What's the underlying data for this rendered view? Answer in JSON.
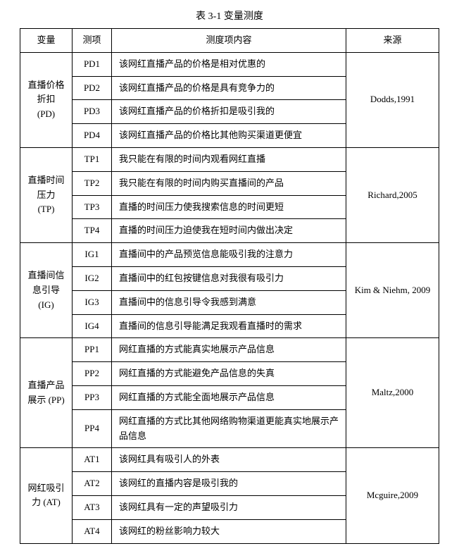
{
  "caption": "表 3-1  变量测度",
  "headers": {
    "variable": "变量",
    "item": "测项",
    "content": "测度项内容",
    "source": "来源"
  },
  "groups": [
    {
      "variable": "直播价格折扣 (PD)",
      "source": "Dodds,1991",
      "rows": [
        {
          "item": "PD1",
          "content": "该网红直播产品的价格是相对优惠的"
        },
        {
          "item": "PD2",
          "content": "该网红直播产品的价格是具有竞争力的"
        },
        {
          "item": "PD3",
          "content": "该网红直播产品的价格折扣是吸引我的"
        },
        {
          "item": "PD4",
          "content": "该网红直播产品的价格比其他购买渠道更便宜"
        }
      ]
    },
    {
      "variable": "直播时间压力 (TP)",
      "source": "Richard,2005",
      "rows": [
        {
          "item": "TP1",
          "content": "我只能在有限的时间内观看网红直播"
        },
        {
          "item": "TP2",
          "content": "我只能在有限的时间内购买直播间的产品"
        },
        {
          "item": "TP3",
          "content": "直播的时间压力使我搜索信息的时间更短"
        },
        {
          "item": "TP4",
          "content": "直播的时间压力迫使我在短时间内做出决定"
        }
      ]
    },
    {
      "variable": "直播间信息引导 (IG)",
      "source": "Kim & Niehm, 2009",
      "rows": [
        {
          "item": "IG1",
          "content": "直播间中的产品预览信息能吸引我的注意力"
        },
        {
          "item": "IG2",
          "content": "直播间中的红包按键信息对我很有吸引力"
        },
        {
          "item": "IG3",
          "content": "直播间中的信息引导令我感到满意"
        },
        {
          "item": "IG4",
          "content": "直播间的信息引导能满足我观看直播时的需求"
        }
      ]
    },
    {
      "variable": "直播产品展示 (PP)",
      "source": "Maltz,2000",
      "rows": [
        {
          "item": "PP1",
          "content": "网红直播的方式能真实地展示产品信息"
        },
        {
          "item": "PP2",
          "content": "网红直播的方式能避免产品信息的失真"
        },
        {
          "item": "PP3",
          "content": "网红直播的方式能全面地展示产品信息"
        },
        {
          "item": "PP4",
          "content": "网红直播的方式比其他网络购物渠道更能真实地展示产品信息"
        }
      ]
    },
    {
      "variable": "网红吸引力 (AT)",
      "source": "Mcguire,2009",
      "rows": [
        {
          "item": "AT1",
          "content": "该网红具有吸引人的外表"
        },
        {
          "item": "AT2",
          "content": "该网红的直播内容是吸引我的"
        },
        {
          "item": "AT3",
          "content": "该网红具有一定的声望吸引力"
        },
        {
          "item": "AT4",
          "content": "该网红的粉丝影响力较大"
        }
      ]
    }
  ]
}
